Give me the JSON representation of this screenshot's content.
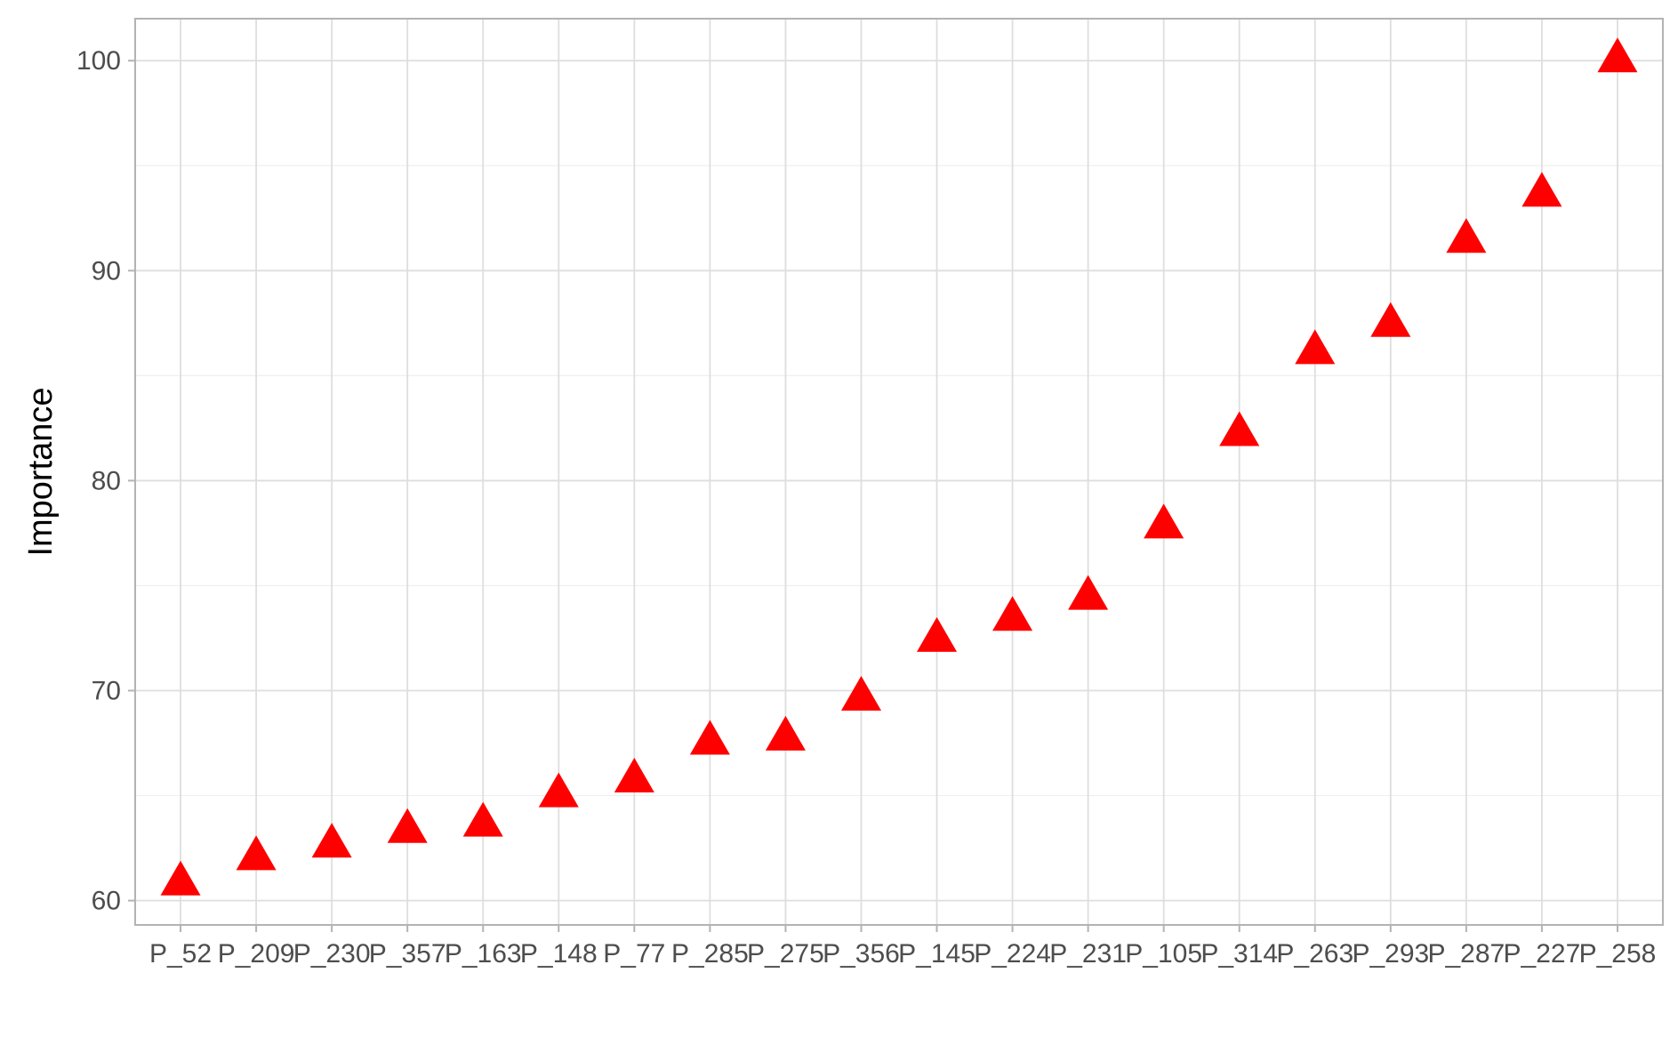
{
  "chart_data": {
    "type": "scatter",
    "title": "",
    "xlabel": "",
    "ylabel": "Importance",
    "categories": [
      "P_52",
      "P_209",
      "P_230",
      "P_357",
      "P_163",
      "P_148",
      "P_77",
      "P_285",
      "P_275",
      "P_356",
      "P_145",
      "P_224",
      "P_231",
      "P_105",
      "P_314",
      "P_263",
      "P_293",
      "P_287",
      "P_227",
      "P_258"
    ],
    "series": [
      {
        "values": [
          60.8,
          62.0,
          62.6,
          63.3,
          63.6,
          65.0,
          65.7,
          67.5,
          67.7,
          69.6,
          72.4,
          73.4,
          74.4,
          77.8,
          82.2,
          86.1,
          87.4,
          91.4,
          93.6,
          100.0
        ],
        "marker": "triangle",
        "color": "#ff0000"
      }
    ],
    "ylim": [
      58.84,
      102.0
    ],
    "yticks": [
      60,
      70,
      80,
      90,
      100
    ],
    "grid": true,
    "theme": {
      "panel_border": "#b3b3b3",
      "grid_major": "#dedede",
      "grid_minor": "#efefef",
      "tick_text": "#4d4d4d",
      "axis_title": "#000000"
    }
  }
}
